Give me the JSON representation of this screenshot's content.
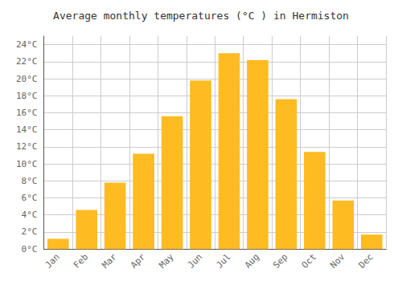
{
  "chart_data": {
    "type": "bar",
    "title": "Average monthly temperatures (°C ) in Hermiston",
    "categories": [
      "Jan",
      "Feb",
      "Mar",
      "Apr",
      "May",
      "Jun",
      "Jul",
      "Aug",
      "Sep",
      "Oct",
      "Nov",
      "Dec"
    ],
    "values": [
      1.2,
      4.6,
      7.8,
      11.2,
      15.6,
      19.8,
      23.0,
      22.2,
      17.6,
      11.4,
      5.7,
      1.7
    ],
    "color": "#FFBB22",
    "ylim": [
      0,
      25
    ],
    "yticks": [
      {
        "value": 0,
        "label": "0°C"
      },
      {
        "value": 2,
        "label": "2°C"
      },
      {
        "value": 4,
        "label": "4°C"
      },
      {
        "value": 6,
        "label": "6°C"
      },
      {
        "value": 8,
        "label": "8°C"
      },
      {
        "value": 10,
        "label": "10°C"
      },
      {
        "value": 12,
        "label": "12°C"
      },
      {
        "value": 14,
        "label": "14°C"
      },
      {
        "value": 16,
        "label": "16°C"
      },
      {
        "value": 18,
        "label": "18°C"
      },
      {
        "value": 20,
        "label": "20°C"
      },
      {
        "value": 22,
        "label": "22°C"
      },
      {
        "value": 24,
        "label": "24°C"
      }
    ],
    "grid": true
  }
}
